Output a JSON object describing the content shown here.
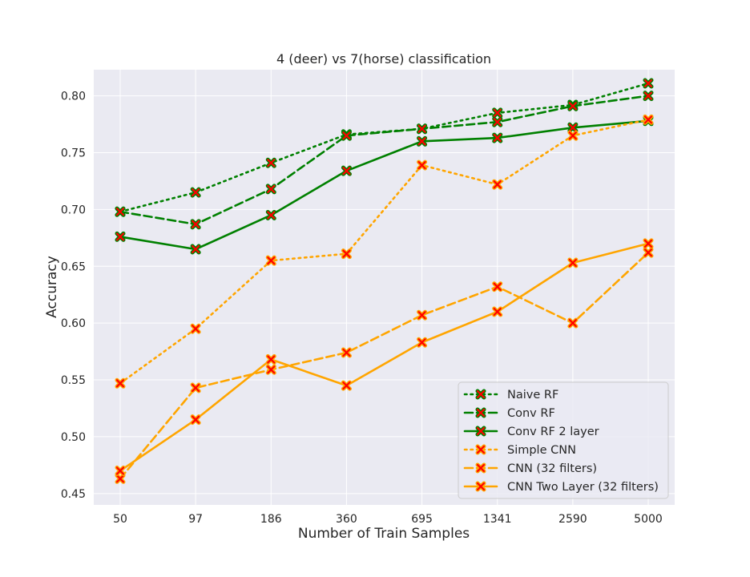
{
  "chart_data": {
    "type": "line",
    "title": "4 (deer) vs 7(horse) classification",
    "xlabel": "Number of Train Samples",
    "ylabel": "Accuracy",
    "categories": [
      "50",
      "97",
      "186",
      "360",
      "695",
      "1341",
      "2590",
      "5000"
    ],
    "ylim": [
      0.44,
      0.823
    ],
    "yticks": [
      "0.45",
      "0.50",
      "0.55",
      "0.60",
      "0.65",
      "0.70",
      "0.75",
      "0.80"
    ],
    "grid": true,
    "legend_position": "lower-right",
    "background": "#eaeaf2",
    "series": [
      {
        "name": "Naive RF",
        "color": "#008000",
        "style": "dotted",
        "values": [
          0.698,
          0.715,
          0.741,
          0.766,
          0.771,
          0.785,
          0.792,
          0.811
        ]
      },
      {
        "name": "Conv RF",
        "color": "#008000",
        "style": "dashed",
        "values": [
          0.698,
          0.687,
          0.718,
          0.765,
          0.771,
          0.777,
          0.791,
          0.8
        ]
      },
      {
        "name": "Conv RF 2 layer",
        "color": "#008000",
        "style": "solid",
        "values": [
          0.676,
          0.665,
          0.695,
          0.734,
          0.76,
          0.763,
          0.772,
          0.778
        ]
      },
      {
        "name": "Simple CNN",
        "color": "#ffa500",
        "style": "dotted",
        "values": [
          0.547,
          0.595,
          0.655,
          0.661,
          0.739,
          0.722,
          0.765,
          0.779
        ]
      },
      {
        "name": "CNN (32 filters)",
        "color": "#ffa500",
        "style": "dashed",
        "values": [
          0.463,
          0.543,
          0.559,
          0.574,
          0.607,
          0.632,
          0.6,
          0.662
        ]
      },
      {
        "name": "CNN Two Layer (32 filters)",
        "color": "#ffa500",
        "style": "solid",
        "values": [
          0.47,
          0.515,
          0.568,
          0.545,
          0.583,
          0.61,
          0.653,
          0.67
        ]
      }
    ],
    "marker": {
      "shape": "x",
      "color": "#ff0000"
    }
  }
}
